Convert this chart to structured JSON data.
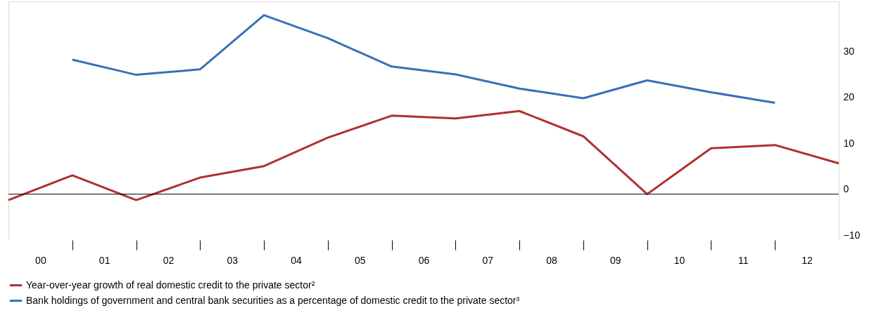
{
  "chart_data": {
    "type": "line",
    "x": [
      0,
      1,
      2,
      3,
      4,
      5,
      6,
      7,
      8,
      9,
      10,
      11,
      12,
      13
    ],
    "xlim": [
      0,
      13
    ],
    "xticks": [
      {
        "value": 0.5,
        "label": "00"
      },
      {
        "value": 1,
        "label": null
      },
      {
        "value": 1.5,
        "label": "01"
      },
      {
        "value": 2,
        "label": null
      },
      {
        "value": 2.5,
        "label": "02"
      },
      {
        "value": 3,
        "label": null
      },
      {
        "value": 3.5,
        "label": "03"
      },
      {
        "value": 4,
        "label": null
      },
      {
        "value": 4.5,
        "label": "04"
      },
      {
        "value": 5,
        "label": null
      },
      {
        "value": 5.5,
        "label": "05"
      },
      {
        "value": 6,
        "label": null
      },
      {
        "value": 6.5,
        "label": "06"
      },
      {
        "value": 7,
        "label": null
      },
      {
        "value": 7.5,
        "label": "07"
      },
      {
        "value": 8,
        "label": null
      },
      {
        "value": 8.5,
        "label": "08"
      },
      {
        "value": 9,
        "label": null
      },
      {
        "value": 9.5,
        "label": "09"
      },
      {
        "value": 10,
        "label": null
      },
      {
        "value": 10.5,
        "label": "10"
      },
      {
        "value": 11,
        "label": null
      },
      {
        "value": 11.5,
        "label": "11"
      },
      {
        "value": 12,
        "label": null
      },
      {
        "value": 12.5,
        "label": "12"
      }
    ],
    "ylim": [
      -10,
      42
    ],
    "yticks": [
      -10,
      0,
      10,
      20,
      30
    ],
    "series": [
      {
        "name": "Year-over-year growth of real domestic credit to the private sector²",
        "color": "#b03030",
        "values": [
          -1.3,
          4.1,
          -1.3,
          3.6,
          6.1,
          12.3,
          17.1,
          16.5,
          18.1,
          12.6,
          0,
          10,
          10.7,
          6.7
        ]
      },
      {
        "name": "Bank holdings of government and central bank securities as a percentage of domestic credit to the private sector³",
        "color": "#3a6fba",
        "values": [
          null,
          29.3,
          26,
          27.2,
          39,
          34,
          27.8,
          26.1,
          23,
          20.9,
          24.8,
          22.2,
          19.9,
          null
        ]
      }
    ],
    "ref_lines": [
      {
        "axis": "y",
        "value": 0,
        "label": null,
        "color": "#000000"
      }
    ],
    "grid": "y",
    "legend": "bottom",
    "marker": "none",
    "line_style": "solid"
  }
}
